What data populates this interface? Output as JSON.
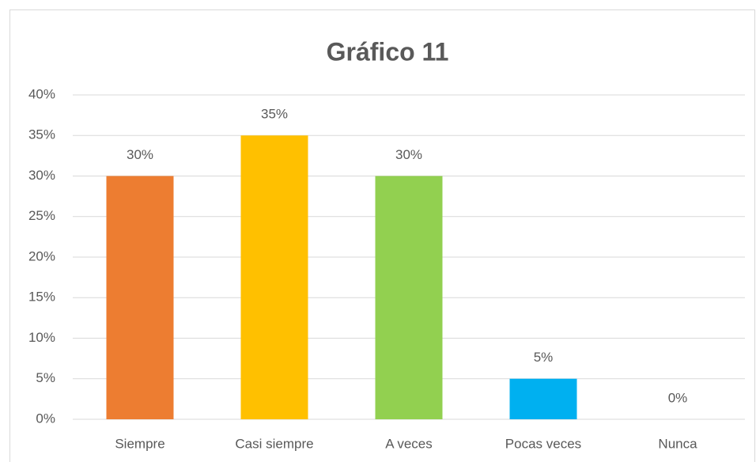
{
  "chart_data": {
    "type": "bar",
    "title": "Gráfico 11",
    "categories": [
      "Siempre",
      "Casi siempre",
      "A veces",
      "Pocas veces",
      "Nunca"
    ],
    "values": [
      30,
      35,
      30,
      5,
      0
    ],
    "value_labels": [
      "30%",
      "35%",
      "30%",
      "5%",
      "0%"
    ],
    "colors": [
      "#ed7d31",
      "#ffc000",
      "#92d050",
      "#00b0f0",
      "#d9d9d9"
    ],
    "ylim": [
      0,
      40
    ],
    "yticks": [
      {
        "value": 0,
        "label": "0%"
      },
      {
        "value": 5,
        "label": "5%"
      },
      {
        "value": 10,
        "label": "10%"
      },
      {
        "value": 15,
        "label": "15%"
      },
      {
        "value": 20,
        "label": "20%"
      },
      {
        "value": 25,
        "label": "25%"
      },
      {
        "value": 30,
        "label": "30%"
      },
      {
        "value": 35,
        "label": "35%"
      },
      {
        "value": 40,
        "label": "40%"
      }
    ],
    "grid": true
  }
}
